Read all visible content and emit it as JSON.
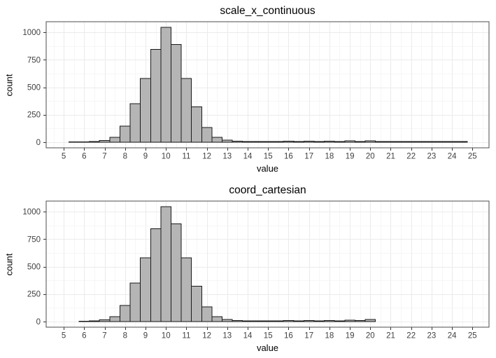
{
  "page": {
    "background": "#ffffff"
  },
  "style": {
    "bar_fill": "#b5b5b5",
    "bar_stroke": "#1a1a1a",
    "grid_major": "#ebebeb",
    "grid_minor": "#f6f6f6",
    "panel_border": "#4d4d4d",
    "panel_bg": "#ffffff",
    "axis_text_color": "#404040",
    "tick_color": "#333333",
    "title_color": "#000000"
  },
  "chart_data": [
    {
      "type": "bar",
      "subtype": "histogram",
      "title": "scale_x_continuous",
      "xlabel": "value",
      "ylabel": "count",
      "binwidth": 0.5,
      "xlim": [
        4.14,
        25.81
      ],
      "ylim": [
        -52,
        1097
      ],
      "x_ticks": [
        5,
        6,
        7,
        8,
        9,
        10,
        11,
        12,
        13,
        14,
        15,
        16,
        17,
        18,
        19,
        20,
        21,
        22,
        23,
        24,
        25
      ],
      "y_ticks": [
        0,
        250,
        500,
        750,
        1000
      ],
      "y_minor": [
        125,
        375,
        625,
        875
      ],
      "grid": true,
      "legend_position": "none",
      "bin_centers": [
        5.5,
        6,
        6.5,
        7,
        7.5,
        8,
        8.5,
        9,
        9.5,
        10,
        10.5,
        11,
        11.5,
        12,
        12.5,
        13,
        13.5,
        14,
        14.5,
        15,
        15.5,
        16,
        16.5,
        17,
        17.5,
        18,
        18.5,
        19,
        19.5,
        20,
        20.5,
        21,
        21.5,
        22,
        22.5,
        23,
        23.5,
        24,
        24.5
      ],
      "counts": [
        2,
        3,
        5,
        15,
        45,
        145,
        350,
        580,
        845,
        1045,
        890,
        580,
        320,
        133,
        45,
        18,
        8,
        5,
        5,
        5,
        6,
        9,
        5,
        10,
        5,
        10,
        5,
        12,
        5,
        12,
        4,
        4,
        4,
        4,
        4,
        4,
        4,
        4,
        4
      ]
    },
    {
      "type": "bar",
      "subtype": "histogram",
      "title": "coord_cartesian",
      "xlabel": "value",
      "ylabel": "count",
      "binwidth": 0.5,
      "xlim": [
        4.14,
        25.81
      ],
      "ylim": [
        -52,
        1097
      ],
      "x_ticks": [
        5,
        6,
        7,
        8,
        9,
        10,
        11,
        12,
        13,
        14,
        15,
        16,
        17,
        18,
        19,
        20,
        21,
        22,
        23,
        24,
        25
      ],
      "y_ticks": [
        0,
        250,
        500,
        750,
        1000
      ],
      "y_minor": [
        125,
        375,
        625,
        875
      ],
      "grid": true,
      "legend_position": "none",
      "bin_centers": [
        6,
        6.5,
        7,
        7.5,
        8,
        8.5,
        9,
        9.5,
        10,
        10.5,
        11,
        11.5,
        12,
        12.5,
        13,
        13.5,
        14,
        14.5,
        15,
        15.5,
        16,
        16.5,
        17,
        17.5,
        18,
        18.5,
        19,
        19.5,
        20
      ],
      "counts": [
        3,
        6,
        15,
        45,
        145,
        350,
        580,
        845,
        1045,
        890,
        580,
        320,
        133,
        45,
        18,
        8,
        5,
        5,
        5,
        6,
        9,
        6,
        10,
        6,
        10,
        6,
        12,
        8,
        18
      ]
    }
  ]
}
